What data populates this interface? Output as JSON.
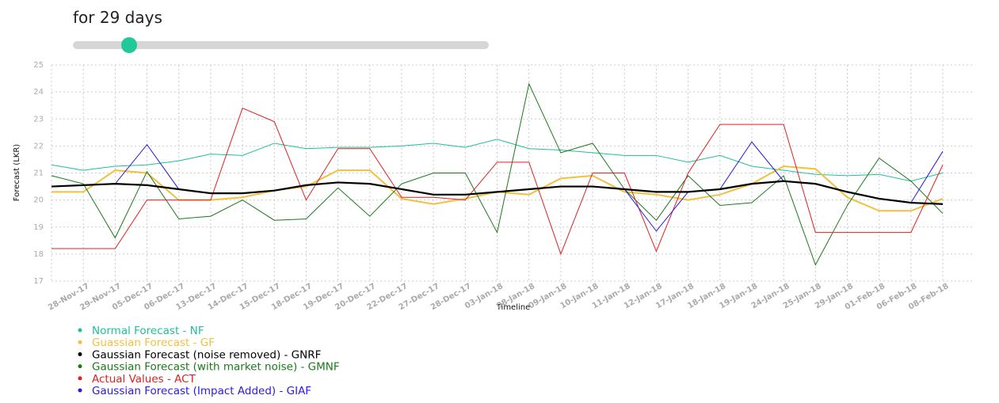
{
  "slider_label": "for 29 days",
  "chart_data": {
    "type": "line",
    "x_label": "Timeline",
    "y_label": "Forecast (LKR)",
    "categories": [
      null,
      "28-Nov-17",
      "29-Nov-17",
      "05-Dec-17",
      "06-Dec-17",
      "13-Dec-17",
      "14-Dec-17",
      "15-Dec-17",
      "18-Dec-17",
      "19-Dec-17",
      "20-Dec-17",
      "22-Dec-17",
      "27-Dec-17",
      "28-Dec-17",
      "03-Jan-18",
      "08-Jan-18",
      "09-Jan-18",
      "10-Jan-18",
      "11-Jan-18",
      "12-Jan-18",
      "17-Jan-18",
      "18-Jan-18",
      "19-Jan-18",
      "24-Jan-18",
      "25-Jan-18",
      "29-Jan-18",
      "01-Feb-18",
      "06-Feb-18",
      "08-Feb-18"
    ],
    "ylim": [
      17,
      25
    ],
    "yticks": [
      17,
      18,
      19,
      20,
      21,
      22,
      23,
      24,
      25
    ],
    "grid": true,
    "series": [
      {
        "name": "Normal Forecast - NF",
        "color": "#1fbf9a",
        "values": [
          21.3,
          21.1,
          21.25,
          21.3,
          21.45,
          21.7,
          21.65,
          22.1,
          21.9,
          21.95,
          21.95,
          22.0,
          22.1,
          21.95,
          22.25,
          21.9,
          21.85,
          21.75,
          21.65,
          21.65,
          21.4,
          21.65,
          21.25,
          21.1,
          20.95,
          20.9,
          20.95,
          20.7,
          21.0
        ]
      },
      {
        "name": "Guassian Forecast - GF",
        "color": "#f0c040",
        "values": [
          20.3,
          20.3,
          21.1,
          21.0,
          20.0,
          20.0,
          20.1,
          20.35,
          20.5,
          21.1,
          21.1,
          20.05,
          19.85,
          20.05,
          20.3,
          20.2,
          20.8,
          20.9,
          20.3,
          20.2,
          20.0,
          20.2,
          20.6,
          21.25,
          21.15,
          20.1,
          19.6,
          19.6,
          20.05
        ]
      },
      {
        "name": "Gaussian Forecast (noise removed) - GNRF",
        "color": "#000000",
        "values": [
          20.5,
          20.55,
          20.6,
          20.55,
          20.4,
          20.25,
          20.25,
          20.35,
          20.55,
          20.65,
          20.6,
          20.4,
          20.2,
          20.2,
          20.3,
          20.4,
          20.5,
          20.5,
          20.4,
          20.3,
          20.3,
          20.4,
          20.6,
          20.7,
          20.6,
          20.3,
          20.05,
          19.9,
          19.85
        ]
      },
      {
        "name": "Gaussian Forecast (with market noise) - GMNF",
        "color": "#1a7a1a",
        "values": [
          20.9,
          20.6,
          18.6,
          21.05,
          19.3,
          19.4,
          20.0,
          19.25,
          19.3,
          20.45,
          19.4,
          20.6,
          21.0,
          21.0,
          18.8,
          24.3,
          21.75,
          22.1,
          20.4,
          19.25,
          20.9,
          19.8,
          19.9,
          20.9,
          17.6,
          19.8,
          21.55,
          20.7,
          19.5
        ]
      },
      {
        "name": "Actual Values - ACT",
        "color": "#e02020",
        "values": [
          18.2,
          18.2,
          18.2,
          20.0,
          20.0,
          20.0,
          23.4,
          22.9,
          20.0,
          21.9,
          21.9,
          20.1,
          20.1,
          20.0,
          21.4,
          21.4,
          18.0,
          21.0,
          21.0,
          18.1,
          21.0,
          22.8,
          22.8,
          22.8,
          18.8,
          18.8,
          18.8,
          18.8,
          21.3
        ]
      },
      {
        "name": "Gaussian Forecast (Impact Added) - GIAF",
        "color": "#2a1ae0",
        "values": [
          20.5,
          20.55,
          20.6,
          22.05,
          20.4,
          20.25,
          20.25,
          20.35,
          20.55,
          20.65,
          20.6,
          20.4,
          20.2,
          20.2,
          20.3,
          20.4,
          20.5,
          20.5,
          20.4,
          18.85,
          20.3,
          20.4,
          22.15,
          20.7,
          20.6,
          20.3,
          20.05,
          19.9,
          21.8
        ]
      }
    ]
  }
}
